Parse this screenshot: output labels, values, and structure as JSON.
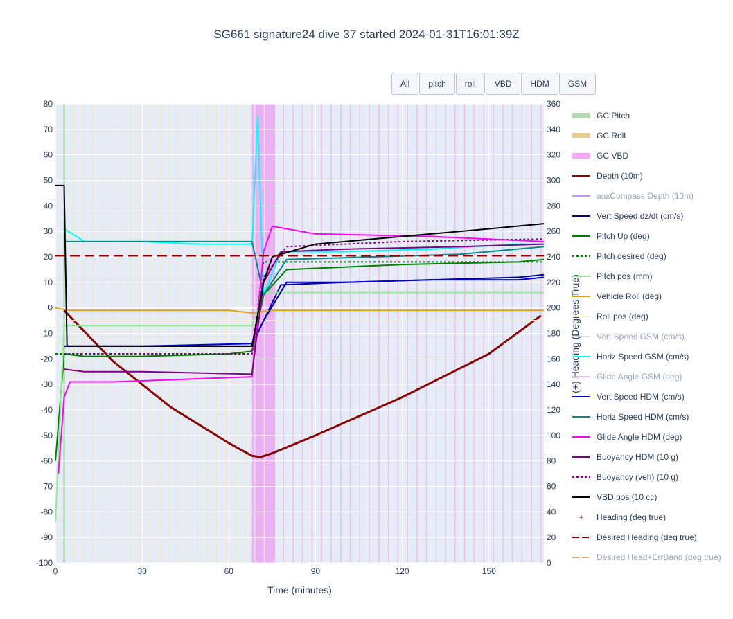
{
  "title": "SG661 signature24 dive 37 started 2024-01-31T16:01:39Z",
  "buttons": [
    "All",
    "pitch",
    "roll",
    "VBD",
    "HDM",
    "GSM"
  ],
  "chart_data": {
    "type": "line",
    "xlabel": "Time (minutes)",
    "ylabel_right": "(+) Heading (Degrees True)",
    "xlim": [
      0,
      169
    ],
    "ylim": [
      -100,
      80
    ],
    "ylim_right": [
      0,
      360
    ],
    "x_ticks": [
      0,
      30,
      60,
      90,
      120,
      150
    ],
    "y_ticks": [
      80,
      70,
      60,
      50,
      40,
      30,
      20,
      10,
      0,
      -10,
      -20,
      -30,
      -40,
      -50,
      -60,
      -70,
      -80,
      -90,
      -100
    ],
    "y2_ticks": [
      360,
      340,
      320,
      300,
      280,
      260,
      240,
      220,
      200,
      180,
      160,
      140,
      120,
      100,
      80,
      60,
      40,
      20,
      0
    ],
    "apogee_span": [
      68,
      76
    ],
    "grid": true,
    "legend_position": "right",
    "series": [
      {
        "name": "GC Pitch",
        "color": "#b4d9b0",
        "style": "band",
        "values": []
      },
      {
        "name": "GC Roll",
        "color": "#e8cc95",
        "style": "band",
        "values": []
      },
      {
        "name": "GC VBD",
        "color": "#f7a8f7",
        "style": "band",
        "values": []
      },
      {
        "name": "Depth (10m)",
        "color": "#8b0000",
        "style": "line-marker",
        "x": [
          3,
          20,
          40,
          60,
          68,
          71,
          75,
          90,
          120,
          150,
          168
        ],
        "values": [
          -1,
          -21,
          -39,
          -53,
          -58,
          -58.5,
          -57,
          -50,
          -35,
          -18,
          -3
        ]
      },
      {
        "name": "auxCompass Depth (10m)",
        "color": "#c792ea",
        "style": "line-marker",
        "values": []
      },
      {
        "name": "Vert Speed dz/dt (cm/s)",
        "color": "#00008b",
        "style": "line",
        "x": [
          3,
          10,
          30,
          60,
          68,
          72,
          78,
          100,
          130,
          160,
          169
        ],
        "values": [
          -15,
          -15,
          -15,
          -15,
          -15,
          -5,
          9,
          10,
          11,
          12,
          13
        ]
      },
      {
        "name": "Pitch Up (deg)",
        "color": "#008000",
        "style": "line",
        "x": [
          0,
          3,
          10,
          30,
          60,
          68,
          72,
          80,
          120,
          160,
          169
        ],
        "values": [
          -60,
          -18,
          -19,
          -19,
          -18,
          -17,
          5,
          15,
          17,
          18,
          19
        ]
      },
      {
        "name": "Pitch desired (deg)",
        "color": "#008000",
        "style": "dot",
        "x": [
          0,
          68,
          72,
          169
        ],
        "values": [
          -18,
          -18,
          18,
          18
        ]
      },
      {
        "name": "Pitch pos (mm)",
        "color": "#90ee90",
        "style": "line",
        "x": [
          0,
          3,
          68,
          72,
          169
        ],
        "values": [
          -84,
          -7,
          -7,
          6,
          6
        ]
      },
      {
        "name": "Vehicle Roll (deg)",
        "color": "#daa520",
        "style": "line",
        "x": [
          0,
          5,
          60,
          68,
          75,
          169
        ],
        "values": [
          0,
          -1,
          -1,
          -2,
          -1,
          -1
        ]
      },
      {
        "name": "Roll pos (deg)",
        "color": "#f5f0c2",
        "style": "line",
        "x": [
          0,
          169
        ],
        "values": [
          -5,
          -5
        ]
      },
      {
        "name": "Vert Speed GSM (cm/s)",
        "color": "#d0dcf0",
        "style": "line",
        "values": []
      },
      {
        "name": "Horiz Speed GSM (cm/s)",
        "color": "#00ffff",
        "style": "line",
        "x": [
          3,
          10,
          30,
          50,
          68,
          70,
          72,
          78,
          100,
          130,
          160,
          169
        ],
        "values": [
          31,
          26,
          26,
          25,
          25,
          75,
          5,
          22,
          22,
          23,
          25,
          25
        ]
      },
      {
        "name": "Glide Angle GSM (deg)",
        "color": "#f4b8f4",
        "style": "line",
        "values": []
      },
      {
        "name": "Vert Speed HDM (cm/s)",
        "color": "#0000cd",
        "style": "line",
        "x": [
          3,
          10,
          30,
          68,
          72,
          80,
          100,
          130,
          160,
          169
        ],
        "values": [
          -15,
          -15,
          -15,
          -14,
          -5,
          10,
          10,
          11,
          11,
          12
        ]
      },
      {
        "name": "Horiz Speed HDM (cm/s)",
        "color": "#008b8b",
        "style": "line",
        "x": [
          3,
          10,
          40,
          68,
          72,
          80,
          110,
          140,
          169
        ],
        "values": [
          26,
          26,
          26,
          26,
          5,
          19,
          20,
          21,
          24
        ]
      },
      {
        "name": "Glide Angle HDM (deg)",
        "color": "#ff00ff",
        "style": "line",
        "x": [
          1,
          3,
          5,
          20,
          68,
          72,
          75,
          90,
          130,
          169
        ],
        "values": [
          -65,
          -35,
          -29,
          -29,
          -27,
          22,
          32,
          29,
          28,
          26
        ]
      },
      {
        "name": "Buoyancy HDM (10 g)",
        "color": "#800080",
        "style": "line",
        "x": [
          3,
          10,
          30,
          68,
          72,
          78,
          100,
          140,
          169
        ],
        "values": [
          -24,
          -25,
          -25,
          -26,
          10,
          22,
          23,
          24,
          25
        ]
      },
      {
        "name": "Buoyancy (veh) (10 g)",
        "color": "#800080",
        "style": "dot",
        "x": [
          3,
          68,
          72,
          80,
          120,
          169
        ],
        "values": [
          -18,
          -18,
          12,
          24,
          26,
          27
        ]
      },
      {
        "name": "VBD pos (10 cc)",
        "color": "#000000",
        "style": "line",
        "x": [
          0,
          3,
          4,
          10,
          68,
          72,
          75,
          90,
          120,
          150,
          169
        ],
        "values": [
          48,
          48,
          -15,
          -15,
          -15,
          10,
          20,
          25,
          28,
          31,
          33
        ]
      },
      {
        "name": "Heading (deg true)",
        "color": "#8b0000",
        "style": "markers",
        "values": []
      },
      {
        "name": "Desired Heading (deg true)",
        "color": "#8b0000",
        "style": "dash",
        "x": [
          0,
          169
        ],
        "values": [
          241,
          241
        ]
      },
      {
        "name": "Desired Head+ErrBand (deg true)",
        "color": "#e8a878",
        "style": "dash",
        "values": []
      }
    ]
  }
}
